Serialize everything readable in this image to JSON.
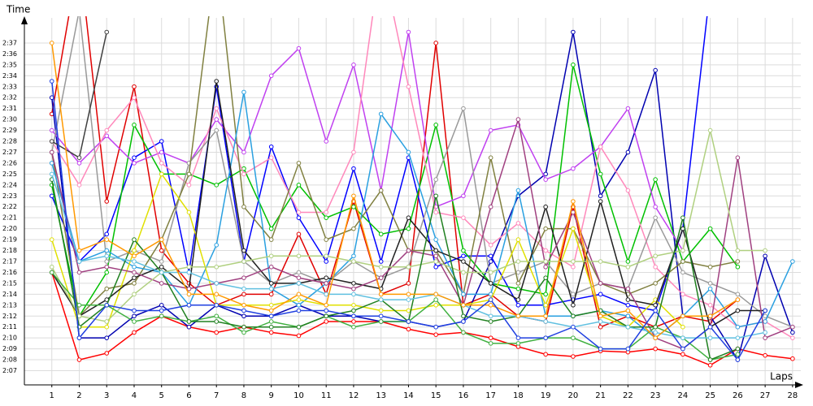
{
  "chart_data": {
    "type": "line",
    "y_label": "Time",
    "x_label": "Laps",
    "x": [
      1,
      2,
      3,
      4,
      5,
      6,
      7,
      8,
      9,
      10,
      11,
      12,
      13,
      14,
      15,
      16,
      17,
      18,
      19,
      20,
      21,
      22,
      23,
      24,
      25,
      26,
      27,
      28
    ],
    "xlim": [
      0,
      28.3
    ],
    "xticks": [
      1,
      2,
      3,
      4,
      5,
      6,
      7,
      8,
      9,
      10,
      11,
      12,
      13,
      14,
      15,
      16,
      17,
      18,
      19,
      20,
      21,
      22,
      23,
      24,
      25,
      26,
      27,
      28
    ],
    "ylim": [
      125.7,
      159.3
    ],
    "yticks": [
      {
        "value": 127,
        "label": "2:07"
      },
      {
        "value": 128,
        "label": "2:08"
      },
      {
        "value": 129,
        "label": "2:09"
      },
      {
        "value": 130,
        "label": "2:10"
      },
      {
        "value": 131,
        "label": "2:11"
      },
      {
        "value": 132,
        "label": "2:12"
      },
      {
        "value": 133,
        "label": "2:13"
      },
      {
        "value": 134,
        "label": "2:14"
      },
      {
        "value": 135,
        "label": "2:15"
      },
      {
        "value": 136,
        "label": "2:16"
      },
      {
        "value": 137,
        "label": "2:17"
      },
      {
        "value": 138,
        "label": "2:18"
      },
      {
        "value": 139,
        "label": "2:19"
      },
      {
        "value": 140,
        "label": "2:20"
      },
      {
        "value": 141,
        "label": "2:21"
      },
      {
        "value": 142,
        "label": "2:22"
      },
      {
        "value": 143,
        "label": "2:23"
      },
      {
        "value": 144,
        "label": "2:24"
      },
      {
        "value": 145,
        "label": "2:25"
      },
      {
        "value": 146,
        "label": "2:26"
      },
      {
        "value": 147,
        "label": "2:27"
      },
      {
        "value": 148,
        "label": "2:28"
      },
      {
        "value": 149,
        "label": "2:29"
      },
      {
        "value": 150,
        "label": "2:30"
      },
      {
        "value": 151,
        "label": "2:31"
      },
      {
        "value": 152,
        "label": "2:32"
      },
      {
        "value": 153,
        "label": "2:33"
      },
      {
        "value": 154,
        "label": "2:34"
      },
      {
        "value": 155,
        "label": "2:35"
      },
      {
        "value": 156,
        "label": "2:36"
      },
      {
        "value": 157,
        "label": "2:37"
      }
    ],
    "grid": true,
    "series": [
      {
        "color": "#ff0000",
        "values": [
          136,
          128,
          128.6,
          130.5,
          132,
          131,
          130.5,
          131,
          130.5,
          130.2,
          131.5,
          131.5,
          131.5,
          130.8,
          130.3,
          130.5,
          130,
          129.2,
          128.5,
          128.3,
          128.8,
          128.7,
          129,
          128.5,
          127.5,
          129,
          128.4,
          128.1
        ]
      },
      {
        "color": "#e00000",
        "values": [
          150.5,
          165,
          142.5,
          153,
          138,
          135,
          133,
          134,
          134,
          139.5,
          134,
          142.5,
          134,
          135,
          157,
          133,
          134,
          132,
          131.5,
          142,
          131,
          132,
          131,
          132,
          131.5,
          133.5,
          null,
          null
        ]
      },
      {
        "color": "#0000b0",
        "values": [
          152,
          130,
          130,
          132,
          133,
          131,
          133,
          132,
          132,
          133,
          132,
          132,
          131.5,
          131.5,
          131,
          131.5,
          137,
          143,
          145,
          158,
          143,
          147,
          154.5,
          132,
          132,
          128,
          137.5,
          130.5
        ]
      },
      {
        "color": "#0000ff",
        "values": [
          143,
          137,
          139.5,
          146.5,
          148,
          136,
          153,
          137,
          147.5,
          141,
          137,
          145.5,
          137,
          146.5,
          136.5,
          137.5,
          137.5,
          133,
          133,
          133.5,
          134,
          133,
          132.5,
          140,
          162,
          null,
          null,
          null
        ]
      },
      {
        "color": "#00c000",
        "values": [
          144,
          132,
          136,
          149.5,
          145,
          145,
          144,
          145.5,
          140,
          144,
          141,
          142,
          139.5,
          140,
          149.5,
          138,
          135,
          134.5,
          134,
          155,
          145,
          137,
          144.5,
          137,
          140,
          136.5,
          null,
          null
        ]
      },
      {
        "color": "#c040f0",
        "values": [
          149,
          146,
          148.5,
          146,
          147,
          146,
          150,
          147,
          154,
          156.5,
          148,
          155,
          143.5,
          158,
          142,
          143,
          149,
          149.5,
          144.5,
          145.5,
          147.5,
          151,
          142,
          138,
          null,
          null,
          null,
          null
        ]
      },
      {
        "color": "#ff88bb",
        "values": [
          148,
          144,
          149,
          152,
          146,
          144,
          151,
          145,
          146.5,
          141.5,
          141.5,
          147,
          165,
          153,
          141.5,
          141,
          138.5,
          140.5,
          138,
          136.5,
          147.5,
          143.5,
          136.5,
          134,
          133,
          131,
          131.5,
          130
        ]
      },
      {
        "color": "#999999",
        "values": [
          147,
          160,
          137,
          138,
          137,
          146,
          149,
          137,
          135,
          136,
          135,
          137,
          135.5,
          136.5,
          144.5,
          151,
          135,
          136,
          137,
          134,
          135,
          134.5,
          141,
          136,
          135,
          134,
          132,
          131
        ]
      },
      {
        "color": "#808040",
        "values": [
          147,
          132,
          134.5,
          135,
          139,
          145,
          165,
          142,
          139,
          146,
          139,
          140,
          143.5,
          138,
          138,
          134,
          146.5,
          135,
          140,
          140,
          135,
          134,
          135,
          137,
          136.5,
          137,
          null,
          null
        ]
      },
      {
        "color": "#2aa0e0",
        "values": [
          146,
          137,
          138,
          136.5,
          136,
          133,
          138.5,
          152.5,
          134.5,
          133,
          135,
          137.5,
          150.5,
          147,
          139,
          134,
          134,
          143.5,
          132,
          132,
          132.5,
          132,
          130,
          132,
          134.5,
          131,
          131.5,
          137
        ]
      },
      {
        "color": "#e0e000",
        "values": [
          139,
          131,
          131,
          138,
          145,
          141.5,
          133,
          133,
          133,
          133.5,
          133,
          133,
          132.5,
          132.5,
          133,
          133,
          133.5,
          139,
          133,
          140,
          132,
          131,
          133.5,
          131,
          null,
          null,
          null,
          null
        ]
      },
      {
        "color": "#202020",
        "values": [
          136,
          132,
          133.5,
          135.5,
          136.5,
          134.5,
          153.5,
          138,
          135,
          135,
          135.5,
          135,
          134.5,
          141,
          138,
          137,
          135,
          133.5,
          142,
          133,
          142.5,
          133.5,
          133,
          140,
          131,
          132.5,
          132.5,
          null
        ]
      },
      {
        "color": "#404040",
        "values": [
          148,
          146.5,
          158,
          null,
          null,
          null,
          null,
          null,
          null,
          null,
          null,
          null,
          null,
          null,
          null,
          null,
          null,
          null,
          null,
          null,
          null,
          null,
          null,
          null,
          null,
          null,
          null,
          null
        ]
      },
      {
        "color": "#a04080",
        "values": [
          147,
          136,
          136.5,
          136,
          135,
          134.5,
          135,
          135.5,
          136.5,
          135.5,
          135,
          134.5,
          135.5,
          138,
          137.5,
          133,
          142,
          150,
          136.5,
          141.5,
          135,
          134.5,
          130,
          129,
          131,
          146.5,
          130,
          131
        ]
      },
      {
        "color": "#b0d080",
        "values": [
          136.5,
          132,
          131.5,
          134,
          136,
          136.5,
          136.5,
          137,
          137.5,
          137.5,
          137.5,
          137,
          136.5,
          136.5,
          137,
          136,
          136,
          137,
          137,
          137,
          137,
          136.5,
          137.5,
          138,
          149,
          138,
          138,
          null
        ]
      },
      {
        "color": "#40b040",
        "values": [
          136,
          133,
          133,
          131.5,
          132,
          131.5,
          132,
          130.5,
          131.5,
          131,
          132,
          131,
          131.5,
          131.5,
          133.5,
          130.5,
          129.5,
          129.5,
          130,
          130,
          129,
          129,
          131,
          130,
          128,
          128.5,
          null,
          null
        ]
      },
      {
        "color": "#208020",
        "values": [
          144.5,
          131,
          133,
          139,
          136,
          131.5,
          131.5,
          131,
          131,
          131,
          132,
          132.5,
          133.5,
          131.5,
          143,
          132,
          131.5,
          132,
          135.5,
          132,
          132.5,
          131,
          131,
          141,
          128,
          129,
          null,
          null
        ]
      },
      {
        "color": "#60c0e0",
        "values": [
          145,
          137,
          137.5,
          137,
          136,
          136,
          135,
          134.5,
          134.5,
          135,
          134,
          134,
          133.5,
          133.5,
          134,
          133,
          132,
          132,
          131.5,
          131,
          131.5,
          131,
          130.5,
          130,
          130,
          130,
          130.5,
          null
        ]
      },
      {
        "color": "#ff9900",
        "values": [
          157,
          138,
          139,
          137.5,
          139,
          134,
          134,
          133,
          132.5,
          134,
          133,
          143,
          134,
          134,
          134,
          133,
          133,
          132,
          132,
          142.5,
          132,
          132.5,
          130,
          132,
          132,
          133.5,
          null,
          null
        ]
      },
      {
        "color": "#2040e0",
        "values": [
          153.5,
          130,
          133,
          132.5,
          132.5,
          133,
          133,
          132.5,
          132,
          132.5,
          132.5,
          132,
          132,
          131.5,
          131,
          131.5,
          133.5,
          130,
          130,
          131,
          129,
          129,
          132.5,
          129,
          131,
          128,
          132.5,
          null
        ]
      }
    ]
  }
}
